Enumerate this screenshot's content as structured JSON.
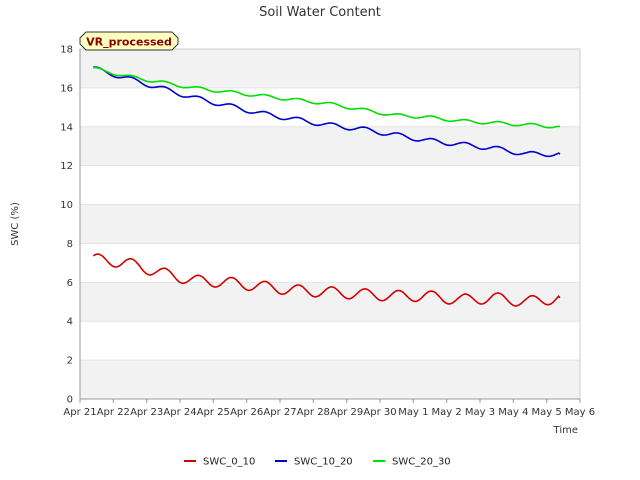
{
  "chart_data": {
    "type": "line",
    "title": "Soil Water Content",
    "xlabel": "Time",
    "ylabel": "SWC (%)",
    "badge": "VR_processed",
    "ylim": [
      0,
      18
    ],
    "yticks": [
      "0",
      "2",
      "4",
      "6",
      "8",
      "10",
      "12",
      "14",
      "16",
      "18"
    ],
    "xticks": [
      "Apr 21",
      "Apr 22",
      "Apr 23",
      "Apr 24",
      "Apr 25",
      "Apr 26",
      "Apr 27",
      "Apr 28",
      "Apr 29",
      "Apr 30",
      "May 1",
      "May 2",
      "May 3",
      "May 4",
      "May 5",
      "May 6"
    ],
    "x_dates": [
      "2024-04-21",
      "2024-04-22",
      "2024-04-23",
      "2024-04-24",
      "2024-04-25",
      "2024-04-26",
      "2024-04-27",
      "2024-04-28",
      "2024-04-29",
      "2024-04-30",
      "2024-05-01",
      "2024-05-02",
      "2024-05-03",
      "2024-05-04",
      "2024-05-05"
    ],
    "grid": true,
    "legend_position": "bottom",
    "series": [
      {
        "name": "SWC_0_10",
        "color": "#d40000",
        "values": [
          7.2,
          7.0,
          6.5,
          6.1,
          6.0,
          5.8,
          5.6,
          5.5,
          5.4,
          5.3,
          5.3,
          5.1,
          5.2,
          5.0,
          5.2
        ]
      },
      {
        "name": "SWC_10_20",
        "color": "#0000cc",
        "values": [
          17.0,
          16.5,
          16.0,
          15.5,
          15.1,
          14.7,
          14.4,
          14.1,
          13.9,
          13.6,
          13.3,
          13.1,
          12.9,
          12.6,
          12.6
        ]
      },
      {
        "name": "SWC_20_30",
        "color": "#00e000",
        "values": [
          17.0,
          16.6,
          16.3,
          16.0,
          15.8,
          15.6,
          15.4,
          15.2,
          14.9,
          14.6,
          14.5,
          14.3,
          14.2,
          14.1,
          14.0
        ]
      }
    ]
  }
}
